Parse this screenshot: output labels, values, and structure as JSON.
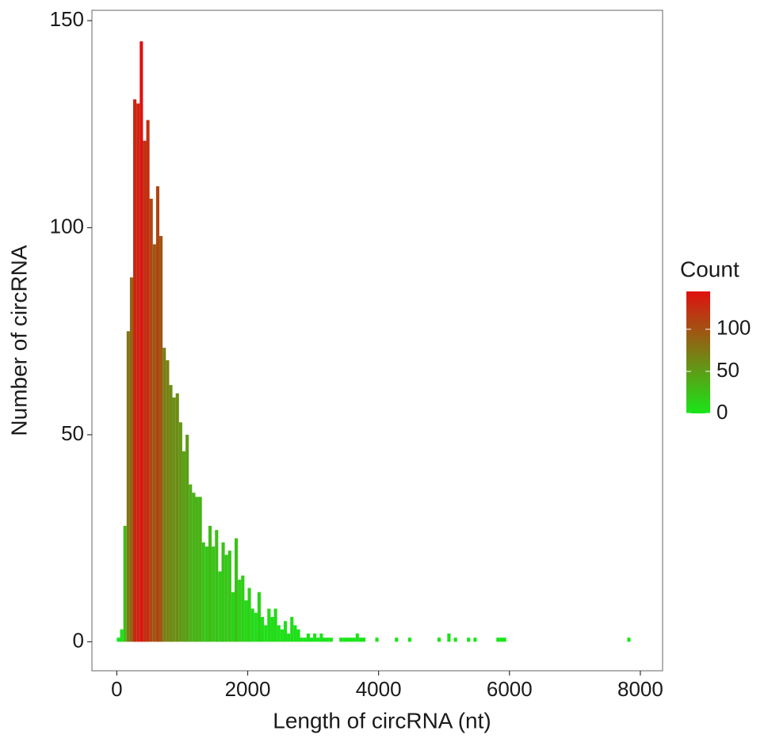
{
  "chart_data": {
    "type": "histogram",
    "x_label": "Length of circRNA (nt)",
    "y_label": "Number of circRNA",
    "bins": [
      0,
      50,
      100,
      150,
      200,
      250,
      300,
      350,
      400,
      450,
      500,
      550,
      600,
      650,
      700,
      750,
      800,
      850,
      900,
      950,
      1000,
      1050,
      1100,
      1150,
      1200,
      1250,
      1300,
      1350,
      1400,
      1450,
      1500,
      1550,
      1600,
      1650,
      1700,
      1750,
      1800,
      1850,
      1900,
      1950,
      2000,
      2050,
      2100,
      2150,
      2200,
      2250,
      2300,
      2350,
      2400,
      2450,
      2500,
      2550,
      2600,
      2650,
      2700,
      2750,
      2800,
      2850,
      2900,
      2950,
      3000,
      3050,
      3100,
      3150,
      3200,
      3250,
      3300,
      3350,
      3400,
      3450,
      3500,
      3550,
      3600,
      3650,
      3700,
      3750,
      3800,
      3850,
      3900,
      3950,
      4000,
      4050,
      4100,
      4150,
      4200,
      4250,
      4300,
      4350,
      4400,
      4450,
      4500,
      4550,
      4600,
      4650,
      4700,
      4750,
      4800,
      4850,
      4900,
      4950,
      5000,
      5050,
      5100,
      5150,
      5200,
      5250,
      5300,
      5350,
      5400,
      5450,
      5500,
      5550,
      5600,
      5650,
      5700,
      5750,
      5800,
      5850,
      5900,
      5950,
      6000,
      6050,
      6100,
      6150,
      6200,
      6250,
      6300,
      6350,
      6400,
      6450,
      6500,
      6550,
      6600,
      6650,
      6700,
      6750,
      6800,
      6850,
      6900,
      6950,
      7000,
      7050,
      7100,
      7150,
      7200,
      7250,
      7300,
      7350,
      7400,
      7450,
      7500,
      7550,
      7600,
      7650,
      7700,
      7750,
      7800,
      7850,
      7900,
      7950,
      8000
    ],
    "values": [
      1,
      3,
      28,
      75,
      88,
      131,
      130,
      145,
      121,
      126,
      107,
      96,
      110,
      98,
      71,
      68,
      62,
      59,
      60,
      53,
      46,
      50,
      38,
      36,
      35,
      35,
      24,
      23,
      28,
      23,
      27,
      17,
      24,
      21,
      22,
      12,
      25,
      15,
      16,
      10,
      13,
      8,
      7,
      12,
      6,
      4,
      8,
      6,
      8,
      4,
      3,
      5,
      2,
      6,
      4,
      3,
      1,
      1,
      2,
      1,
      2,
      1,
      2,
      1,
      1,
      1,
      0,
      0,
      1,
      1,
      1,
      1,
      1,
      2,
      1,
      1,
      0,
      0,
      0,
      1,
      0,
      0,
      0,
      0,
      0,
      1,
      0,
      0,
      0,
      1,
      0,
      0,
      0,
      0,
      0,
      0,
      0,
      0,
      1,
      0,
      0,
      2,
      0,
      1,
      0,
      0,
      0,
      1,
      0,
      1,
      0,
      0,
      0,
      0,
      0,
      0,
      1,
      1,
      1,
      0,
      0,
      0,
      0,
      0,
      0,
      0,
      0,
      0,
      0,
      0,
      0,
      0,
      0,
      0,
      0,
      0,
      0,
      0,
      0,
      0,
      0,
      0,
      0,
      0,
      0,
      0,
      0,
      0,
      0,
      0,
      0,
      0,
      0,
      0,
      0,
      0,
      1,
      0,
      0,
      0
    ],
    "xlim": [
      -380,
      8340
    ],
    "ylim": [
      -7,
      152.5
    ],
    "xticks": [
      0,
      2000,
      4000,
      6000,
      8000
    ],
    "yticks": [
      0,
      50,
      100,
      150
    ],
    "legend": {
      "title": "Count",
      "ticks": [
        0,
        50,
        100
      ],
      "low_color": "#19e619",
      "high_color": "#e01010"
    }
  }
}
